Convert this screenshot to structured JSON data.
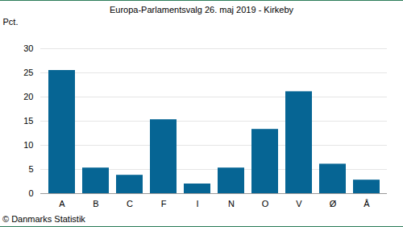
{
  "chart_data": {
    "type": "bar",
    "title": "Europa-Parlamentsvalg 26. maj 2019 - Kirkeby",
    "y_label": "Pct.",
    "caption": "© Danmarks Statistik",
    "categories": [
      "A",
      "B",
      "C",
      "F",
      "I",
      "N",
      "O",
      "V",
      "Ø",
      "Å"
    ],
    "values": [
      25.5,
      5.3,
      3.8,
      15.3,
      2.0,
      5.3,
      13.3,
      21.1,
      6.1,
      2.8
    ],
    "color": "#066594",
    "ylim": [
      0,
      30
    ],
    "yticks": [
      0,
      5,
      10,
      15,
      20,
      25,
      30
    ],
    "grid": true
  }
}
